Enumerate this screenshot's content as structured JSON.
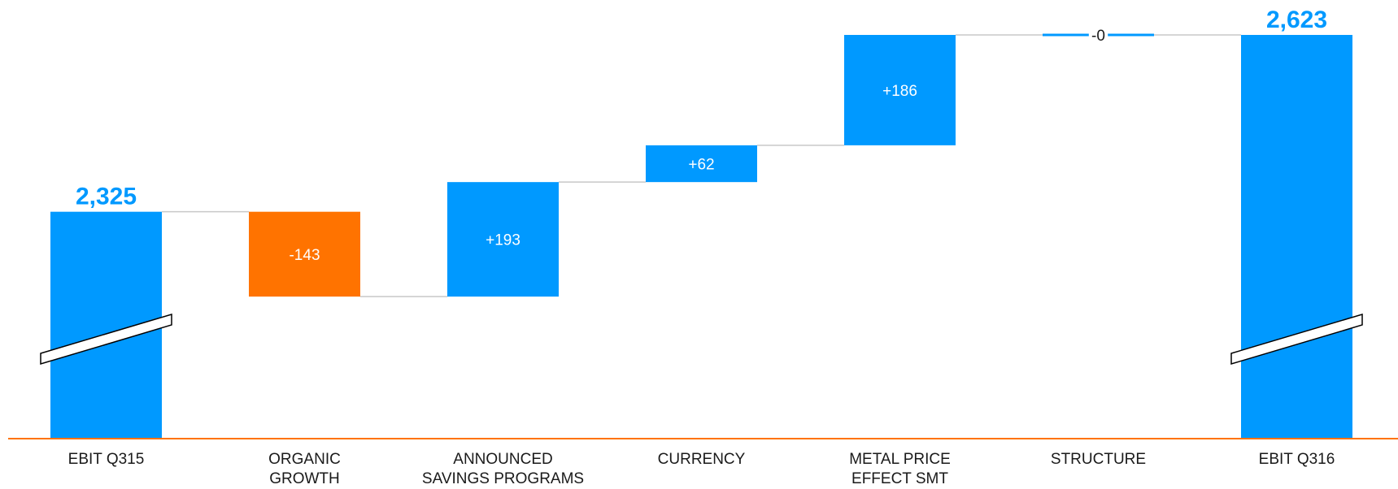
{
  "colors": {
    "increase": "#0099ff",
    "decrease": "#ff7300",
    "total": "#0099ff",
    "baseline": "#ff7300",
    "connector": "#c8c8c8",
    "total_label": "#0099ff"
  },
  "chart_data": {
    "type": "bar",
    "subtype": "waterfall",
    "categories": [
      "EBIT Q315",
      "ORGANIC\nGROWTH",
      "ANNOUNCED\nSAVINGS PROGRAMS",
      "CURRENCY",
      "METAL PRICE\nEFFECT SMT",
      "STRUCTURE",
      "EBIT Q316"
    ],
    "values": [
      2325,
      -143,
      193,
      62,
      186,
      0,
      2623
    ],
    "kinds": [
      "total",
      "delta",
      "delta",
      "delta",
      "delta",
      "delta",
      "total"
    ],
    "labels": [
      "2,325",
      "-143",
      "+193",
      "+62",
      "+186",
      "-0",
      "2,623"
    ],
    "axis_break": true,
    "ylim": [
      1550,
      2623
    ],
    "title": "",
    "xlabel": "",
    "ylabel": "",
    "grid": false,
    "legend": "none"
  }
}
